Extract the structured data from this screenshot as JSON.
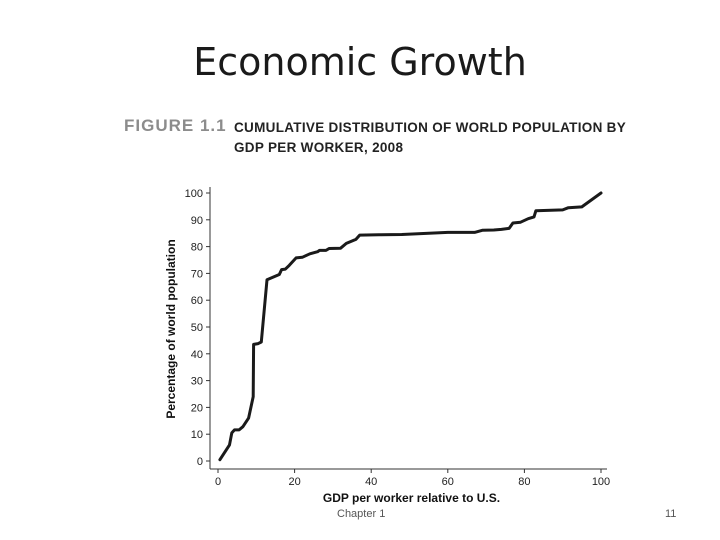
{
  "slide": {
    "title": "Economic Growth",
    "footer_chapter": "Chapter 1",
    "page_number": "11"
  },
  "figure": {
    "label": "FIGURE 1.1",
    "title": "CUMULATIVE DISTRIBUTION OF WORLD POPULATION BY GDP PER WORKER, 2008"
  },
  "chart_data": {
    "type": "line",
    "title": "CUMULATIVE DISTRIBUTION OF WORLD POPULATION BY GDP PER WORKER, 2008",
    "xlabel": "GDP per worker relative to U.S.",
    "ylabel": "Percentage of world population",
    "xlim": [
      0,
      100
    ],
    "ylim": [
      0,
      100
    ],
    "xticks": [
      0,
      20,
      40,
      60,
      80,
      100
    ],
    "yticks": [
      0,
      10,
      20,
      30,
      40,
      50,
      60,
      70,
      80,
      90,
      100
    ],
    "grid": false,
    "line_color": "#1a1a1a",
    "series": [
      {
        "x": [
          0.5,
          3,
          3.6,
          4.3,
          5.5,
          6.5,
          8,
          9.2,
          9.3,
          10.5,
          11.3,
          12.8,
          16,
          16.6,
          17.6,
          18.6,
          20.4,
          22,
          24,
          26,
          26.5,
          28.2,
          29,
          32,
          33.5,
          36,
          37,
          42,
          48,
          60,
          67,
          69,
          72,
          74,
          76,
          77,
          79,
          81,
          82.5,
          83,
          90,
          91.5,
          95,
          100
        ],
        "y": [
          0.5,
          6,
          10.5,
          11.6,
          11.6,
          12.8,
          16,
          24,
          43.5,
          43.8,
          44.4,
          67.6,
          69.6,
          71.4,
          71.6,
          73,
          75.8,
          76,
          77.3,
          78.1,
          78.6,
          78.6,
          79.3,
          79.4,
          81.2,
          82.7,
          84.3,
          84.4,
          84.5,
          85.3,
          85.3,
          86.1,
          86.2,
          86.4,
          86.8,
          88.8,
          89.1,
          90.4,
          91.1,
          93.4,
          93.7,
          94.5,
          94.8,
          100
        ]
      }
    ]
  }
}
